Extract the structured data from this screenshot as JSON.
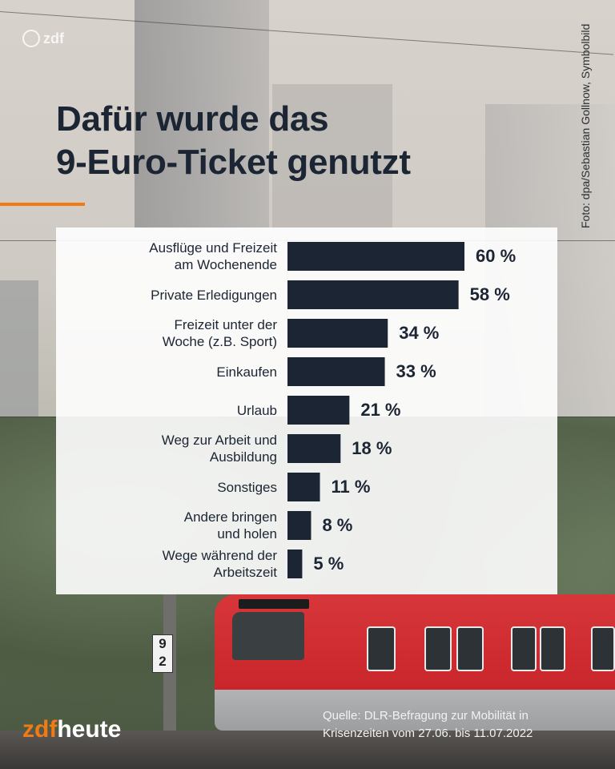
{
  "header": {
    "title_line1": "Dafür wurde das",
    "title_line2": "9-Euro-Ticket genutzt",
    "top_logo": "zdf",
    "photo_credit": "Foto: dpa/Sebastian Gollnow, Symbolbild"
  },
  "footer": {
    "brand_zdf": "zdf",
    "brand_heute": "heute",
    "source_line1": "Quelle: DLR-Befragung zur Mobilität in",
    "source_line2": "Krisenzeiten vom 27.06. bis 11.07.2022"
  },
  "background": {
    "sign_number_top": "9",
    "sign_number_bottom": "2",
    "train_id": "DB"
  },
  "colors": {
    "bar": "#1c2533",
    "accent": "#f07a14",
    "panel": "#ffffff"
  },
  "chart_data": {
    "type": "bar",
    "orientation": "horizontal",
    "title": "Dafür wurde das 9-Euro-Ticket genutzt",
    "categories": [
      [
        "Ausflüge und Freizeit",
        "am Wochenende"
      ],
      [
        "Private Erledigungen"
      ],
      [
        "Freizeit unter der",
        "Woche (z.B. Sport)"
      ],
      [
        "Einkaufen"
      ],
      [
        "Urlaub"
      ],
      [
        "Weg zur Arbeit und",
        "Ausbildung"
      ],
      [
        "Sonstiges"
      ],
      [
        "Andere bringen",
        "und holen"
      ],
      [
        "Wege während der",
        "Arbeitszeit"
      ]
    ],
    "values": [
      60,
      58,
      34,
      33,
      21,
      18,
      11,
      8,
      5
    ],
    "value_labels": [
      "60 %",
      "58 %",
      "34 %",
      "33 %",
      "21 %",
      "18 %",
      "11 %",
      "8 %",
      "5 %"
    ],
    "unit": "%",
    "xlim": [
      0,
      60
    ],
    "grid": false
  }
}
